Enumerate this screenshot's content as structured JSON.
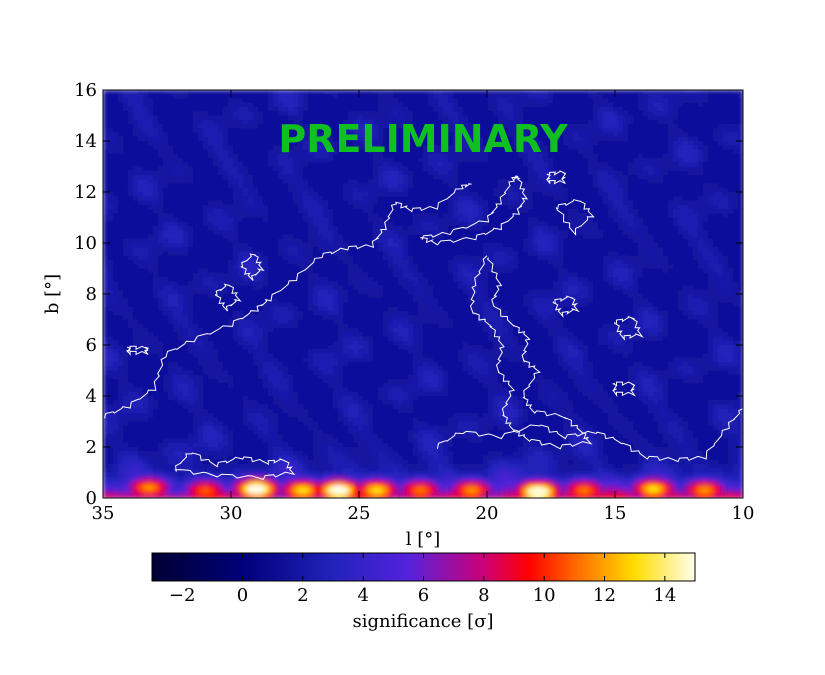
{
  "chart_data": {
    "type": "heatmap",
    "title": "",
    "xlabel": "l [°]",
    "ylabel": "b [°]",
    "xlim": [
      35,
      10
    ],
    "ylim": [
      0,
      16
    ],
    "x_ticks": [
      "35",
      "30",
      "25",
      "20",
      "15",
      "10"
    ],
    "y_ticks": [
      "0",
      "2",
      "4",
      "6",
      "8",
      "10",
      "12",
      "14",
      "16"
    ],
    "watermark": "PRELIMINARY",
    "colorbar": {
      "label": "significance [σ]",
      "range": [
        -3,
        15
      ],
      "ticks": [
        "−2",
        "0",
        "2",
        "4",
        "6",
        "8",
        "10",
        "12",
        "14"
      ],
      "colormap": [
        {
          "value": -3,
          "color": "#000033"
        },
        {
          "value": 0,
          "color": "#00007a"
        },
        {
          "value": 3,
          "color": "#2222bb"
        },
        {
          "value": 5.5,
          "color": "#5522dd"
        },
        {
          "value": 8,
          "color": "#cc0077"
        },
        {
          "value": 9.5,
          "color": "#ff0000"
        },
        {
          "value": 11,
          "color": "#ff6600"
        },
        {
          "value": 13,
          "color": "#ffdd00"
        },
        {
          "value": 15,
          "color": "#ffffee"
        }
      ]
    },
    "background_level_sigma": 1.5,
    "hotspots": [
      {
        "l": 33.2,
        "b": 0.4,
        "peak": 10.5
      },
      {
        "l": 31.0,
        "b": 0.3,
        "peak": 9.5
      },
      {
        "l": 29.0,
        "b": 0.35,
        "peak": 15
      },
      {
        "l": 27.2,
        "b": 0.3,
        "peak": 12
      },
      {
        "l": 25.8,
        "b": 0.3,
        "peak": 15
      },
      {
        "l": 24.3,
        "b": 0.3,
        "peak": 12
      },
      {
        "l": 22.6,
        "b": 0.3,
        "peak": 10
      },
      {
        "l": 20.6,
        "b": 0.3,
        "peak": 10.5
      },
      {
        "l": 18.0,
        "b": 0.25,
        "peak": 15
      },
      {
        "l": 16.2,
        "b": 0.3,
        "peak": 10
      },
      {
        "l": 13.5,
        "b": 0.35,
        "peak": 12
      },
      {
        "l": 11.5,
        "b": 0.3,
        "peak": 10.5
      }
    ],
    "contours": [
      {
        "name": "diagonal",
        "points": [
          [
            35,
            3.2
          ],
          [
            34,
            3.6
          ],
          [
            33,
            4.3
          ],
          [
            32.6,
            5.6
          ],
          [
            31.5,
            6.2
          ],
          [
            30,
            6.8
          ],
          [
            29,
            7.4
          ],
          [
            28.5,
            7.8
          ],
          [
            27.5,
            8.6
          ],
          [
            26.5,
            9.5
          ],
          [
            25.5,
            9.8
          ],
          [
            24.5,
            9.9
          ],
          [
            24,
            10.6
          ],
          [
            23.6,
            11.6
          ],
          [
            23,
            11.3
          ],
          [
            22,
            11.4
          ],
          [
            21,
            12.2
          ],
          [
            20.6,
            12.3
          ]
        ]
      },
      {
        "name": "ridge",
        "points": [
          [
            22.6,
            10.2
          ],
          [
            21.5,
            10.4
          ],
          [
            20,
            10.9
          ],
          [
            19.5,
            11.6
          ],
          [
            19,
            12.5
          ],
          [
            18.8,
            12.6
          ],
          [
            18.5,
            11.8
          ],
          [
            18.8,
            11.2
          ],
          [
            19.5,
            10.6
          ],
          [
            20.5,
            10.2
          ],
          [
            22,
            10.0
          ],
          [
            22.6,
            10.2
          ]
        ]
      },
      {
        "name": "midfield",
        "points": [
          [
            20,
            9.5
          ],
          [
            19.5,
            8.4
          ],
          [
            19.8,
            7.6
          ],
          [
            19.0,
            6.8
          ],
          [
            18.4,
            6.3
          ],
          [
            18.6,
            5.4
          ],
          [
            18.0,
            5.0
          ],
          [
            18.6,
            4.0
          ],
          [
            18.2,
            3.4
          ],
          [
            17.0,
            3.2
          ],
          [
            16.3,
            2.6
          ],
          [
            16.0,
            2.2
          ],
          [
            17.2,
            2.0
          ],
          [
            18.4,
            2.3
          ],
          [
            19.0,
            2.7
          ],
          [
            19.4,
            3.3
          ],
          [
            19.0,
            4.3
          ],
          [
            19.6,
            5.0
          ],
          [
            19.4,
            6.0
          ],
          [
            19.9,
            6.8
          ],
          [
            20.6,
            7.3
          ],
          [
            20.5,
            8.4
          ],
          [
            20.0,
            9.5
          ]
        ]
      },
      {
        "name": "low-band-left",
        "points": [
          [
            32.2,
            1.1
          ],
          [
            31.6,
            1.8
          ],
          [
            30.6,
            1.3
          ],
          [
            29.6,
            1.6
          ],
          [
            28.6,
            1.4
          ],
          [
            27.9,
            1.5
          ],
          [
            27.6,
            1.0
          ],
          [
            28.8,
            0.8
          ],
          [
            30.6,
            0.9
          ],
          [
            32.2,
            1.1
          ]
        ]
      },
      {
        "name": "low-band-right",
        "points": [
          [
            22.0,
            2.0
          ],
          [
            21.0,
            2.6
          ],
          [
            19.5,
            2.4
          ],
          [
            18.0,
            2.9
          ],
          [
            17.0,
            2.4
          ],
          [
            15.8,
            2.6
          ],
          [
            14.8,
            2.2
          ],
          [
            13.8,
            1.6
          ],
          [
            12.6,
            1.5
          ],
          [
            11.5,
            1.6
          ],
          [
            10.6,
            2.8
          ],
          [
            10.0,
            3.5
          ]
        ]
      },
      {
        "name": "blob-1",
        "points": [
          [
            29.6,
            9.1
          ],
          [
            29.1,
            9.6
          ],
          [
            28.8,
            9.0
          ],
          [
            29.2,
            8.6
          ],
          [
            29.6,
            9.1
          ]
        ]
      },
      {
        "name": "blob-2",
        "points": [
          [
            30.6,
            8.0
          ],
          [
            30.1,
            8.4
          ],
          [
            29.7,
            7.8
          ],
          [
            30.2,
            7.4
          ],
          [
            30.6,
            8.0
          ]
        ]
      },
      {
        "name": "blob-3",
        "points": [
          [
            17.6,
            12.7
          ],
          [
            17.0,
            12.8
          ],
          [
            17.0,
            12.4
          ],
          [
            17.6,
            12.4
          ],
          [
            17.6,
            12.7
          ]
        ]
      },
      {
        "name": "blob-4",
        "points": [
          [
            17.3,
            11.4
          ],
          [
            16.4,
            11.7
          ],
          [
            15.9,
            11.1
          ],
          [
            16.6,
            10.4
          ],
          [
            17.3,
            11.4
          ]
        ]
      },
      {
        "name": "blob-5",
        "points": [
          [
            17.4,
            7.7
          ],
          [
            16.7,
            7.9
          ],
          [
            16.5,
            7.4
          ],
          [
            17.1,
            7.2
          ],
          [
            17.4,
            7.7
          ]
        ]
      },
      {
        "name": "blob-6",
        "points": [
          [
            15.0,
            6.9
          ],
          [
            14.3,
            7.1
          ],
          [
            14.0,
            6.4
          ],
          [
            14.7,
            6.3
          ],
          [
            15.0,
            6.9
          ]
        ]
      },
      {
        "name": "blob-7",
        "points": [
          [
            15.0,
            4.5
          ],
          [
            14.3,
            4.5
          ],
          [
            14.3,
            4.1
          ],
          [
            15.0,
            4.1
          ],
          [
            15.0,
            4.5
          ]
        ]
      },
      {
        "name": "blob-8",
        "points": [
          [
            34.0,
            5.9
          ],
          [
            33.3,
            5.9
          ],
          [
            33.3,
            5.7
          ],
          [
            34.0,
            5.7
          ],
          [
            34.0,
            5.9
          ]
        ]
      }
    ]
  }
}
